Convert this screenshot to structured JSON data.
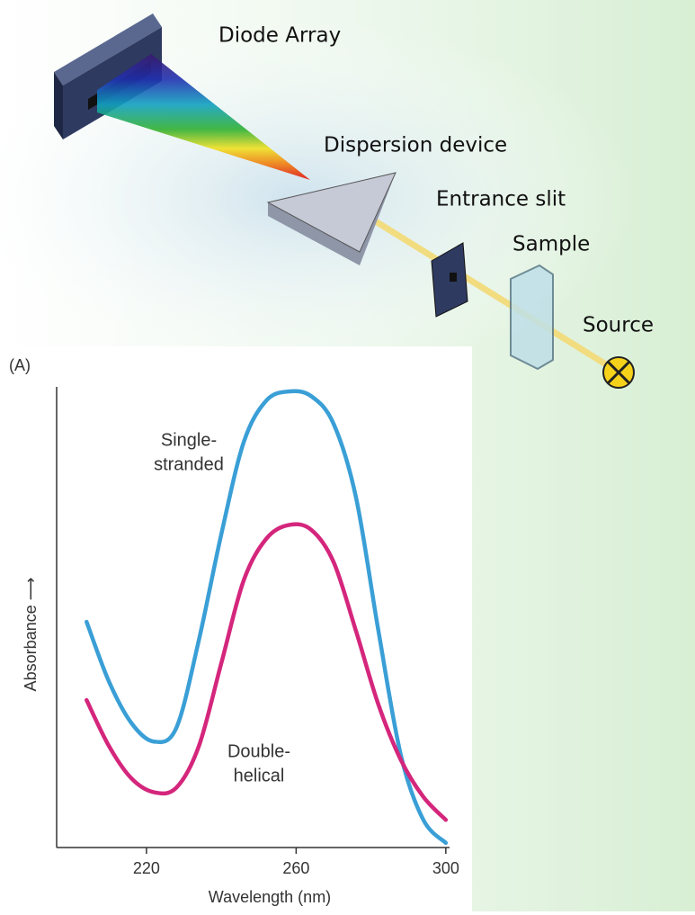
{
  "diagram": {
    "labels": [
      "Diode Array",
      "Dispersion device",
      "Entrance slit",
      "Sample",
      "Source"
    ]
  },
  "chart_data": {
    "type": "line",
    "panel_label": "(A)",
    "xlabel": "Wavelength (nm)",
    "ylabel": "Absorbance ⟶",
    "x": [
      204,
      210,
      216,
      222,
      228,
      234,
      240,
      246,
      252,
      258,
      264,
      270,
      276,
      282,
      288,
      294,
      300
    ],
    "series": [
      {
        "name": "Single-stranded",
        "color": "#3a9fd6",
        "values": [
          0.49,
          0.36,
          0.27,
          0.23,
          0.26,
          0.45,
          0.68,
          0.88,
          0.97,
          0.99,
          0.98,
          0.92,
          0.76,
          0.47,
          0.2,
          0.06,
          0.01
        ]
      },
      {
        "name": "Double-helical",
        "color": "#d4267c",
        "values": [
          0.32,
          0.22,
          0.15,
          0.12,
          0.13,
          0.22,
          0.4,
          0.58,
          0.67,
          0.7,
          0.69,
          0.62,
          0.47,
          0.31,
          0.19,
          0.11,
          0.06
        ]
      }
    ],
    "annotations": [
      {
        "lines": [
          "Single-",
          "stranded"
        ]
      },
      {
        "lines": [
          "Double-",
          "helical"
        ]
      }
    ],
    "xlim": [
      196,
      301
    ],
    "ylim": [
      0,
      1
    ],
    "xticks": [
      220,
      260,
      300
    ]
  }
}
